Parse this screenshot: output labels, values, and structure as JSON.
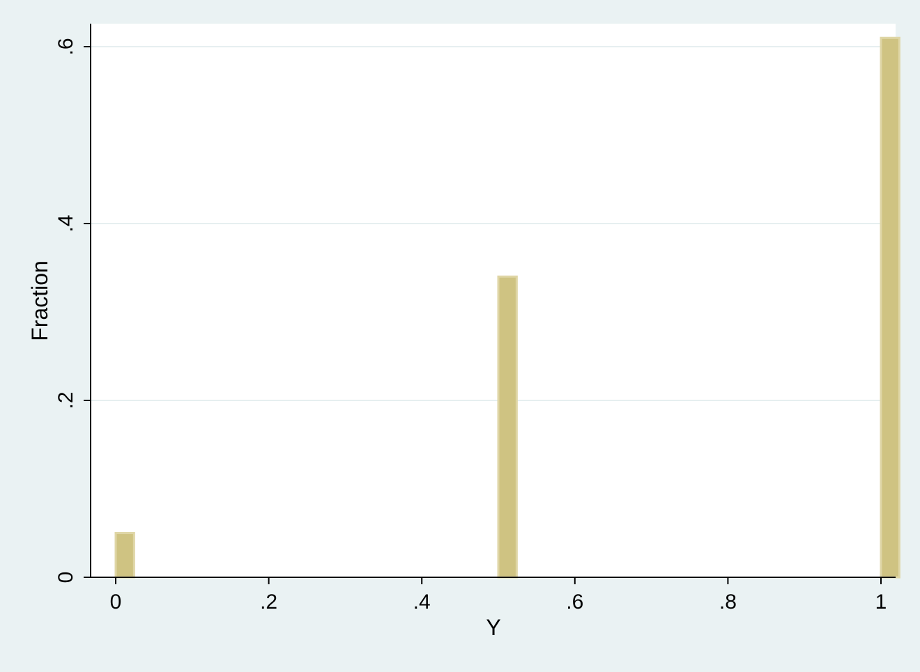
{
  "chart_data": {
    "type": "bar",
    "title": "",
    "xlabel": "Y",
    "ylabel": "Fraction",
    "x": [
      0,
      0.5,
      1
    ],
    "values": [
      0.05,
      0.34,
      0.61
    ],
    "bar_width": 0.024,
    "xlim": [
      -0.03,
      1.02
    ],
    "ylim": [
      0,
      0.625
    ],
    "x_ticks": [
      0,
      0.2,
      0.4,
      0.6,
      0.8,
      1
    ],
    "x_tick_labels": [
      "0",
      ".2",
      ".4",
      ".6",
      ".8",
      "1"
    ],
    "y_ticks": [
      0,
      0.2,
      0.4,
      0.6
    ],
    "y_tick_labels": [
      "0",
      ".2",
      ".4",
      ".6"
    ],
    "grid": true,
    "colors": {
      "background": "#eaf2f3",
      "plot_area": "#ffffff",
      "bar_fill": "#cfc382",
      "bar_edge": "#dfd6a6",
      "grid": "#e6eff0",
      "axis": "#000000"
    }
  }
}
